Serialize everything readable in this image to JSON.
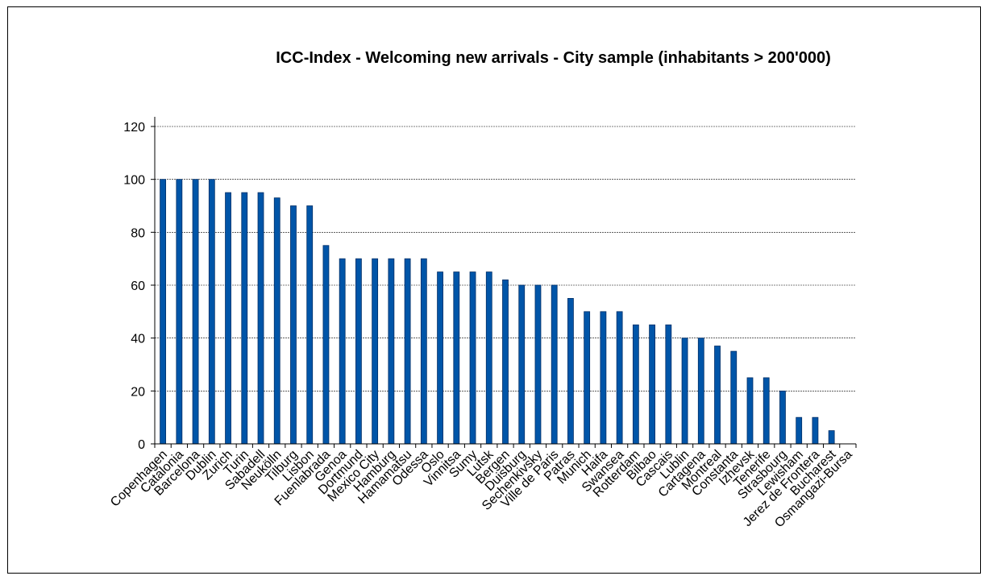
{
  "chart_data": {
    "type": "bar",
    "title": "ICC-Index - Welcoming new arrivals - City sample (inhabitants > 200'000)",
    "xlabel": "",
    "ylabel": "",
    "ylim": [
      0,
      120
    ],
    "yticks": [
      0,
      20,
      40,
      60,
      80,
      100,
      120
    ],
    "grid": true,
    "legend": "none",
    "bar_color": "#0055A8",
    "bar_edge_color": "#002E66",
    "categories": [
      "Copenhagen",
      "Catalonia",
      "Barcelona",
      "Dublin",
      "Zurich",
      "Turin",
      "Sabadell",
      "Neukölln",
      "Tilburg",
      "Lisbon",
      "Fuenlabrada",
      "Genoa",
      "Dortmund",
      "Mexico City",
      "Hamburg",
      "Hamamatsu",
      "Odessa",
      "Oslo",
      "Vinnitsa",
      "Sumy",
      "Lutsk",
      "Bergen",
      "Duisburg",
      "Sechenkivsky",
      "Ville de Paris",
      "Patras",
      "Munich",
      "Haifa",
      "Swansea",
      "Rotterdam",
      "Bilbao",
      "Cascais",
      "Lublin",
      "Cartagena",
      "Montreal",
      "Constanta",
      "Izhevsk",
      "Tenerife",
      "Strasbourg",
      "Lewisham",
      "Jerez de Frontera",
      "Bucharest",
      "Osmangazi-Bursa"
    ],
    "values": [
      100,
      100,
      100,
      100,
      95,
      95,
      95,
      93,
      90,
      90,
      75,
      70,
      70,
      70,
      70,
      70,
      70,
      65,
      65,
      65,
      65,
      62,
      60,
      60,
      60,
      55,
      50,
      50,
      50,
      45,
      45,
      45,
      40,
      40,
      37,
      35,
      25,
      25,
      20,
      10,
      10,
      5,
      0
    ]
  }
}
